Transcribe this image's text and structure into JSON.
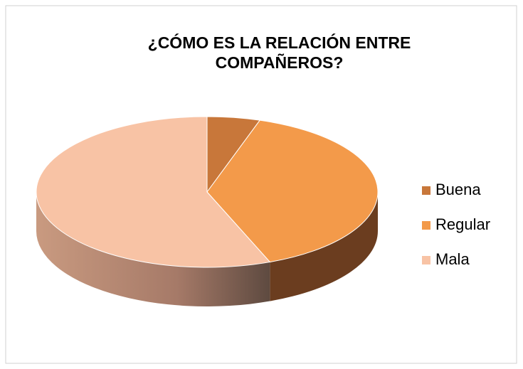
{
  "chart_data": {
    "type": "pie",
    "title": "¿CÓMO ES LA RELACIÓN ENTRE COMPAÑEROS?",
    "categories": [
      "Buena",
      "Regular",
      "Mala"
    ],
    "values": [
      5,
      39,
      56
    ],
    "colors": [
      "#c8773a",
      "#f39a4a",
      "#f8c3a5"
    ],
    "legend": "right"
  }
}
